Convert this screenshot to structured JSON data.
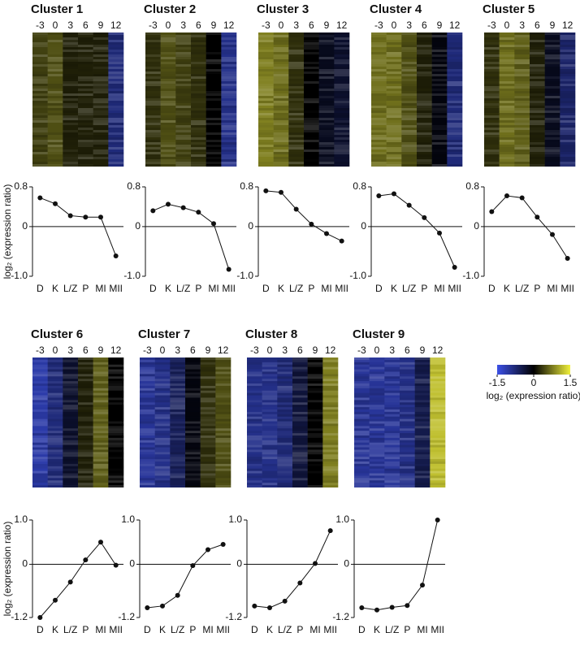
{
  "chart_data": [
    {
      "type": "cluster",
      "title": "Cluster 1",
      "heatmap": {
        "columns": [
          "-3",
          "0",
          "3",
          "6",
          "9",
          "12"
        ],
        "values": [
          0.4,
          0.5,
          0.2,
          0.2,
          0.2,
          -0.8
        ]
      },
      "line": {
        "categories": [
          "D",
          "K",
          "L/Z",
          "P",
          "MI",
          "MII"
        ],
        "values": [
          0.58,
          0.46,
          0.22,
          0.19,
          0.19,
          -0.59
        ],
        "ylim": [
          -1,
          0.8
        ],
        "yticks": [
          {
            "value": -1,
            "label": "-1.0"
          },
          0,
          0.8
        ],
        "ylabel": "log₂ (expression ratio)"
      }
    },
    {
      "type": "cluster",
      "title": "Cluster 2",
      "heatmap": {
        "columns": [
          "-3",
          "0",
          "3",
          "6",
          "9",
          "12"
        ],
        "values": [
          0.3,
          0.5,
          0.4,
          0.3,
          0,
          -0.9
        ]
      },
      "line": {
        "categories": [
          "D",
          "K",
          "L/Z",
          "P",
          "MI",
          "MII"
        ],
        "values": [
          0.32,
          0.45,
          0.38,
          0.29,
          0.06,
          -0.86
        ],
        "ylim": [
          -1,
          0.8
        ],
        "yticks": [
          {
            "value": -1,
            "label": "-1.0"
          },
          0,
          0.8
        ]
      }
    },
    {
      "type": "cluster",
      "title": "Cluster 3",
      "heatmap": {
        "columns": [
          "-3",
          "0",
          "3",
          "6",
          "9",
          "12"
        ],
        "values": [
          0.8,
          0.7,
          0.3,
          0,
          -0.2,
          -0.3
        ]
      },
      "line": {
        "categories": [
          "D",
          "K",
          "L/Z",
          "P",
          "MI",
          "MII"
        ],
        "values": [
          0.72,
          0.69,
          0.35,
          0.05,
          -0.14,
          -0.29
        ],
        "ylim": [
          -1,
          0.8
        ],
        "yticks": [
          {
            "value": -1,
            "label": "-1.0"
          },
          0,
          0.8
        ]
      }
    },
    {
      "type": "cluster",
      "title": "Cluster 4",
      "heatmap": {
        "columns": [
          "-3",
          "0",
          "3",
          "6",
          "9",
          "12"
        ],
        "values": [
          0.7,
          0.7,
          0.5,
          0.2,
          -0.1,
          -0.8
        ]
      },
      "line": {
        "categories": [
          "D",
          "K",
          "L/Z",
          "P",
          "MI",
          "MII"
        ],
        "values": [
          0.62,
          0.66,
          0.43,
          0.18,
          -0.13,
          -0.82
        ],
        "ylim": [
          -1,
          0.8
        ],
        "yticks": [
          {
            "value": -1,
            "label": "-1.0"
          },
          0,
          0.8
        ]
      }
    },
    {
      "type": "cluster",
      "title": "Cluster 5",
      "heatmap": {
        "columns": [
          "-3",
          "0",
          "3",
          "6",
          "9",
          "12"
        ],
        "values": [
          0.3,
          0.7,
          0.6,
          0.2,
          -0.2,
          -0.7
        ]
      },
      "line": {
        "categories": [
          "D",
          "K",
          "L/Z",
          "P",
          "MI",
          "MII"
        ],
        "values": [
          0.3,
          0.62,
          0.58,
          0.19,
          -0.16,
          -0.64
        ],
        "ylim": [
          -1,
          0.8
        ],
        "yticks": [
          {
            "value": -1,
            "label": "-1.0"
          },
          0,
          0.8
        ]
      }
    },
    {
      "type": "cluster",
      "title": "Cluster 6",
      "heatmap": {
        "columns": [
          "-3",
          "0",
          "3",
          "6",
          "9",
          "12"
        ],
        "values": [
          -1.1,
          -0.8,
          -0.3,
          0.2,
          0.6,
          0
        ]
      },
      "line": {
        "categories": [
          "D",
          "K",
          "L/Z",
          "P",
          "MI",
          "MII"
        ],
        "values": [
          -1.2,
          -0.81,
          -0.4,
          0.1,
          0.5,
          -0.02
        ],
        "ylim": [
          -1.2,
          1
        ],
        "yticks": [
          {
            "value": -1.2,
            "label": "-1.2"
          },
          0,
          {
            "value": 1,
            "label": "1.0"
          }
        ],
        "ylabel": "log₂ (expression ratio)"
      }
    },
    {
      "type": "cluster",
      "title": "Cluster 7",
      "heatmap": {
        "columns": [
          "-3",
          "0",
          "3",
          "6",
          "9",
          "12"
        ],
        "values": [
          -1,
          -0.9,
          -0.6,
          -0.1,
          0.3,
          0.5
        ]
      },
      "line": {
        "categories": [
          "D",
          "K",
          "L/Z",
          "P",
          "MI",
          "MII"
        ],
        "values": [
          -0.98,
          -0.94,
          -0.7,
          -0.03,
          0.33,
          0.45
        ],
        "ylim": [
          -1.2,
          1
        ],
        "yticks": [
          {
            "value": -1.2,
            "label": "-1.2"
          },
          0,
          {
            "value": 1,
            "label": "1.0"
          }
        ]
      }
    },
    {
      "type": "cluster",
      "title": "Cluster 8",
      "heatmap": {
        "columns": [
          "-3",
          "0",
          "3",
          "6",
          "9",
          "12"
        ],
        "values": [
          -0.9,
          -0.9,
          -0.8,
          -0.4,
          0,
          0.8
        ]
      },
      "line": {
        "categories": [
          "D",
          "K",
          "L/Z",
          "P",
          "MI",
          "MII"
        ],
        "values": [
          -0.94,
          -0.98,
          -0.83,
          -0.42,
          0.02,
          0.76
        ],
        "ylim": [
          -1.2,
          1
        ],
        "yticks": [
          {
            "value": -1.2,
            "label": "-1.2"
          },
          0,
          {
            "value": 1,
            "label": "1.0"
          }
        ]
      }
    },
    {
      "type": "cluster",
      "title": "Cluster 9",
      "heatmap": {
        "columns": [
          "-3",
          "0",
          "3",
          "6",
          "9",
          "12"
        ],
        "values": [
          -1,
          -1,
          -1,
          -0.9,
          -0.5,
          1.2
        ]
      },
      "line": {
        "categories": [
          "D",
          "K",
          "L/Z",
          "P",
          "MI",
          "MII"
        ],
        "values": [
          -0.98,
          -1.03,
          -0.97,
          -0.93,
          -0.47,
          1
        ],
        "ylim": [
          -1.2,
          1
        ],
        "yticks": [
          {
            "value": -1.2,
            "label": "-1.2"
          },
          0,
          {
            "value": 1,
            "label": "1.0"
          }
        ]
      }
    },
    {
      "type": "colorbar",
      "lim": [
        -1.5,
        1.5
      ],
      "ticks": [
        -1.5,
        0,
        1.5
      ],
      "label": "log₂ (expression ratio)",
      "colors": [
        "#3c50e6",
        "#000000",
        "#f0f03c"
      ]
    }
  ]
}
